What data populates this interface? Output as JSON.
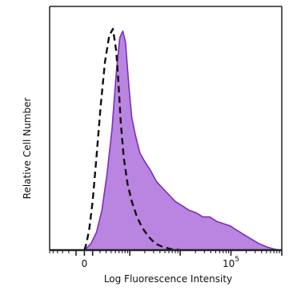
{
  "chart_data": {
    "type": "area",
    "title": "",
    "xlabel": "Log Fluorescence Intensity",
    "ylabel": "Relative Cell Number",
    "x_scale": "biexponential",
    "xlim": [
      -600,
      1000000
    ],
    "ylim": [
      0,
      1.0
    ],
    "grid": false,
    "legend": "none",
    "x_tick_labels": [
      {
        "value": 0,
        "label": "0"
      },
      {
        "value": 100000,
        "base": "10",
        "exp": "5"
      }
    ],
    "colors": {
      "stained_fill": "#b985e0",
      "stained_line": "#7a2fb8",
      "control_line": "#111111",
      "axis": "#222222"
    },
    "series": [
      {
        "name": "",
        "style": "filled",
        "x": [
          1,
          30,
          80,
          150,
          230,
          320,
          420,
          520,
          620,
          720,
          820,
          900,
          980,
          1100,
          1300,
          1600,
          2000,
          2600,
          3400,
          4500,
          6000,
          8000,
          11000,
          15000,
          20000,
          28000,
          38000,
          52000,
          70000,
          95000,
          130000,
          180000,
          250000,
          350000,
          500000,
          700000,
          900000
        ],
        "y": [
          0.0,
          0.01,
          0.03,
          0.08,
          0.18,
          0.35,
          0.55,
          0.8,
          0.96,
          0.99,
          0.94,
          0.82,
          0.72,
          0.6,
          0.52,
          0.44,
          0.4,
          0.36,
          0.31,
          0.28,
          0.25,
          0.22,
          0.2,
          0.18,
          0.17,
          0.15,
          0.15,
          0.13,
          0.12,
          0.11,
          0.09,
          0.07,
          0.05,
          0.03,
          0.015,
          0.005,
          0.0
        ]
      },
      {
        "name": "",
        "style": "dashed",
        "x": [
          1,
          25,
          60,
          100,
          150,
          210,
          280,
          360,
          440,
          520,
          580,
          650,
          750,
          900,
          1100,
          1400,
          1800,
          2400,
          3200,
          4500,
          6500,
          10000
        ],
        "y": [
          0.0,
          0.03,
          0.1,
          0.22,
          0.42,
          0.65,
          0.85,
          0.97,
          1.0,
          0.9,
          0.76,
          0.58,
          0.42,
          0.3,
          0.22,
          0.15,
          0.1,
          0.06,
          0.03,
          0.015,
          0.005,
          0.0
        ]
      }
    ]
  }
}
